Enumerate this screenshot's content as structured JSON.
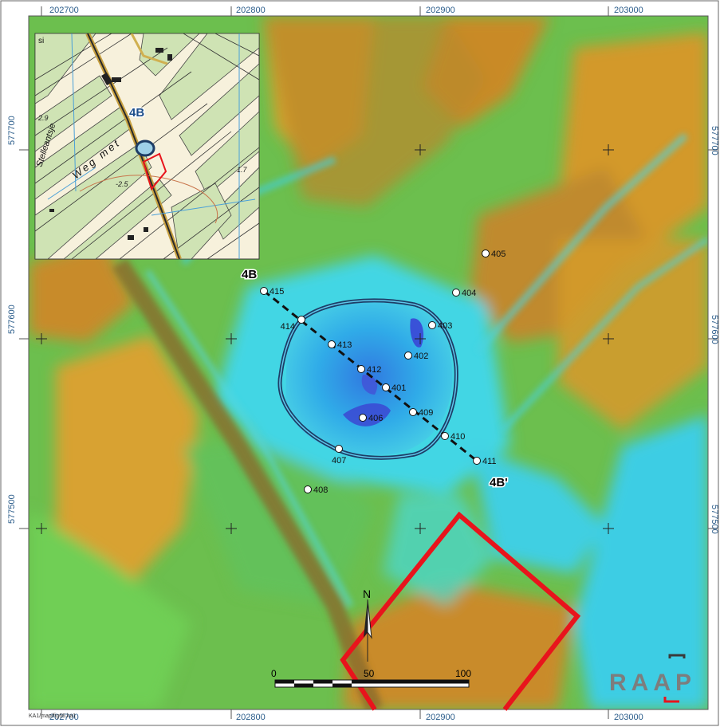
{
  "map": {
    "grid_x_labels": [
      "202700",
      "202800",
      "202900",
      "203000"
    ],
    "grid_y_labels": [
      "577700",
      "577600",
      "577500"
    ],
    "profile": {
      "start_label": "4B",
      "end_label": "4B'"
    },
    "boreholes": [
      {
        "id": "405",
        "label": "405"
      },
      {
        "id": "404",
        "label": "404"
      },
      {
        "id": "415",
        "label": "415"
      },
      {
        "id": "414",
        "label": "414"
      },
      {
        "id": "403",
        "label": "403"
      },
      {
        "id": "413",
        "label": "413"
      },
      {
        "id": "402",
        "label": "402"
      },
      {
        "id": "412",
        "label": "412"
      },
      {
        "id": "401",
        "label": "401"
      },
      {
        "id": "409",
        "label": "409"
      },
      {
        "id": "406",
        "label": "406"
      },
      {
        "id": "410",
        "label": "410"
      },
      {
        "id": "407",
        "label": "407"
      },
      {
        "id": "411",
        "label": "411"
      },
      {
        "id": "408",
        "label": "408"
      }
    ],
    "north_label": "N",
    "scale": {
      "ticks": [
        "0",
        "50",
        "100"
      ]
    },
    "logo": "RAAP",
    "footer_code": "KA1/map/fig66.ka1",
    "inset": {
      "profile_label": "4B",
      "heights": [
        "2.9",
        "-2.5",
        "1.7"
      ],
      "road_name": "Weg met",
      "side_label": "Stelleantsje",
      "corner_label": "si"
    },
    "colors": {
      "high": "#d49a2a",
      "mid": "#5fd36a",
      "low": "#3fd6e0",
      "deepest": "#3a46d6",
      "outline": "#1d3d66",
      "study_area": "#e8141c"
    }
  }
}
